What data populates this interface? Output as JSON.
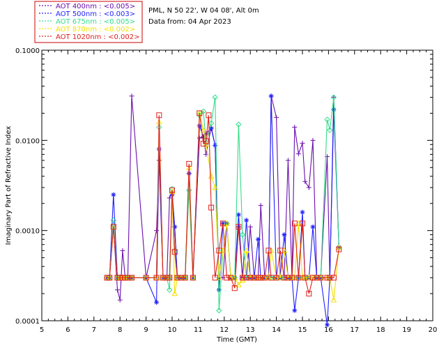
{
  "chart_data": {
    "type": "line",
    "title": "",
    "site": "PML, N 50 22', W 04 08', Alt 0m",
    "date_text": "Data from: 04 Apr 2023",
    "xlabel": "Time (GMT)",
    "ylabel": "Imaginary Part of Refractive Index",
    "xlim": [
      5,
      20
    ],
    "ylim": [
      0.0001,
      0.1
    ],
    "yscale": "log",
    "x_ticks": [
      "5",
      "6",
      "7",
      "8",
      "9",
      "10",
      "11",
      "12",
      "13",
      "14",
      "15",
      "16",
      "17",
      "18",
      "19",
      "20"
    ],
    "y_ticks": [
      "0.0001",
      "0.0010",
      "0.0100",
      "0.1000"
    ],
    "grid": false,
    "legend_position": "top-left, outside plot",
    "series": [
      {
        "name": "AOT  400nm : <0.005>",
        "color": "#6a0dad",
        "marker": "plus",
        "points": [
          [
            7.5,
            0.0003
          ],
          [
            7.6,
            0.0003
          ],
          [
            7.75,
            0.0011
          ],
          [
            7.9,
            0.00022
          ],
          [
            8.0,
            0.00017
          ],
          [
            8.1,
            0.0006
          ],
          [
            8.2,
            0.0003
          ],
          [
            8.3,
            0.0003
          ],
          [
            8.45,
            0.031
          ],
          [
            9.0,
            0.0003
          ],
          [
            9.4,
            0.001
          ],
          [
            9.5,
            0.006
          ],
          [
            9.65,
            0.0003
          ],
          [
            9.8,
            0.0003
          ],
          [
            9.9,
            0.0023
          ],
          [
            10.0,
            0.0027
          ],
          [
            10.1,
            0.0011
          ],
          [
            10.2,
            0.0003
          ],
          [
            10.35,
            0.0003
          ],
          [
            10.5,
            0.0003
          ],
          [
            10.65,
            0.0043
          ],
          [
            10.8,
            0.0003
          ],
          [
            11.05,
            0.0106
          ],
          [
            11.2,
            0.011
          ],
          [
            11.3,
            0.007
          ],
          [
            11.5,
            0.014
          ],
          [
            11.65,
            0.0088
          ],
          [
            11.8,
            0.0003
          ],
          [
            11.95,
            0.0003
          ],
          [
            12.1,
            0.0012
          ],
          [
            12.25,
            0.0003
          ],
          [
            12.4,
            0.0003
          ],
          [
            12.55,
            0.0011
          ],
          [
            12.7,
            0.0003
          ],
          [
            12.85,
            0.0003
          ],
          [
            13.0,
            0.0011
          ],
          [
            13.15,
            0.0003
          ],
          [
            13.3,
            0.0003
          ],
          [
            13.4,
            0.0019
          ],
          [
            13.55,
            0.0003
          ],
          [
            13.7,
            0.0003
          ],
          [
            13.8,
            0.031
          ],
          [
            14.0,
            0.018
          ],
          [
            14.15,
            0.0003
          ],
          [
            14.3,
            0.0003
          ],
          [
            14.45,
            0.006
          ],
          [
            14.6,
            0.0003
          ],
          [
            14.7,
            0.014
          ],
          [
            14.85,
            0.0071
          ],
          [
            15.0,
            0.0093
          ],
          [
            15.1,
            0.0035
          ],
          [
            15.25,
            0.003
          ],
          [
            15.4,
            0.01
          ],
          [
            15.55,
            0.0003
          ],
          [
            15.7,
            0.0003
          ],
          [
            15.95,
            0.0066
          ],
          [
            16.05,
            0.0003
          ],
          [
            16.2,
            0.03
          ],
          [
            16.4,
            0.00065
          ]
        ]
      },
      {
        "name": "AOT  500nm : <0.003>",
        "color": "#1f1fff",
        "marker": "asterisk",
        "points": [
          [
            7.5,
            0.0003
          ],
          [
            7.6,
            0.0003
          ],
          [
            7.75,
            0.0025
          ],
          [
            7.9,
            0.0003
          ],
          [
            8.0,
            0.0003
          ],
          [
            8.1,
            0.0003
          ],
          [
            8.2,
            0.0003
          ],
          [
            8.3,
            0.0003
          ],
          [
            8.45,
            0.0003
          ],
          [
            9.0,
            0.0003
          ],
          [
            9.4,
            0.00016
          ],
          [
            9.5,
            0.008
          ],
          [
            9.65,
            0.0003
          ],
          [
            9.8,
            0.0003
          ],
          [
            9.9,
            0.0003
          ],
          [
            10.0,
            0.0025
          ],
          [
            10.1,
            0.0011
          ],
          [
            10.2,
            0.0003
          ],
          [
            10.35,
            0.0003
          ],
          [
            10.5,
            0.0003
          ],
          [
            10.65,
            0.0043
          ],
          [
            10.8,
            0.0003
          ],
          [
            11.05,
            0.0145
          ],
          [
            11.2,
            0.011
          ],
          [
            11.3,
            0.012
          ],
          [
            11.5,
            0.0135
          ],
          [
            11.65,
            0.0088
          ],
          [
            11.8,
            0.00022
          ],
          [
            11.95,
            0.0012
          ],
          [
            12.1,
            0.0012
          ],
          [
            12.25,
            0.0003
          ],
          [
            12.4,
            0.0003
          ],
          [
            12.55,
            0.0015
          ],
          [
            12.7,
            0.0003
          ],
          [
            12.85,
            0.0013
          ],
          [
            13.0,
            0.0003
          ],
          [
            13.15,
            0.0003
          ],
          [
            13.3,
            0.0008
          ],
          [
            13.4,
            0.0003
          ],
          [
            13.55,
            0.0003
          ],
          [
            13.7,
            0.0003
          ],
          [
            13.8,
            0.031
          ],
          [
            14.0,
            0.0003
          ],
          [
            14.15,
            0.0003
          ],
          [
            14.3,
            0.0009
          ],
          [
            14.45,
            0.0003
          ],
          [
            14.6,
            0.0003
          ],
          [
            14.7,
            0.00013
          ],
          [
            14.85,
            0.0003
          ],
          [
            15.0,
            0.0016
          ],
          [
            15.1,
            0.0003
          ],
          [
            15.25,
            0.0003
          ],
          [
            15.4,
            0.0011
          ],
          [
            15.55,
            0.0003
          ],
          [
            15.7,
            0.0003
          ],
          [
            15.95,
            9e-05
          ],
          [
            16.05,
            0.0003
          ],
          [
            16.2,
            0.022
          ],
          [
            16.4,
            0.00065
          ]
        ]
      },
      {
        "name": "AOT  675nm : <0.005>",
        "color": "#33dd88",
        "marker": "diamond",
        "points": [
          [
            7.5,
            0.0003
          ],
          [
            7.6,
            0.0003
          ],
          [
            7.75,
            0.0013
          ],
          [
            7.9,
            0.0003
          ],
          [
            8.0,
            0.0003
          ],
          [
            8.1,
            0.0003
          ],
          [
            8.2,
            0.0003
          ],
          [
            8.3,
            0.0003
          ],
          [
            8.45,
            0.0003
          ],
          [
            9.0,
            0.0003
          ],
          [
            9.4,
            0.0003
          ],
          [
            9.5,
            0.014
          ],
          [
            9.65,
            0.0003
          ],
          [
            9.8,
            0.0003
          ],
          [
            9.9,
            0.00022
          ],
          [
            10.0,
            0.0029
          ],
          [
            10.1,
            0.0006
          ],
          [
            10.2,
            0.0003
          ],
          [
            10.35,
            0.0003
          ],
          [
            10.5,
            0.0003
          ],
          [
            10.65,
            0.0028
          ],
          [
            10.8,
            0.0003
          ],
          [
            11.05,
            0.019
          ],
          [
            11.2,
            0.021
          ],
          [
            11.3,
            0.0095
          ],
          [
            11.5,
            0.0155
          ],
          [
            11.65,
            0.03
          ],
          [
            11.8,
            0.00013
          ],
          [
            11.95,
            0.0006
          ],
          [
            12.1,
            0.0012
          ],
          [
            12.25,
            0.0003
          ],
          [
            12.4,
            0.0003
          ],
          [
            12.55,
            0.015
          ],
          [
            12.7,
            0.0009
          ],
          [
            12.85,
            0.0003
          ],
          [
            13.0,
            0.0003
          ],
          [
            13.15,
            0.0003
          ],
          [
            13.3,
            0.0003
          ],
          [
            13.4,
            0.0003
          ],
          [
            13.55,
            0.0003
          ],
          [
            13.7,
            0.0003
          ],
          [
            13.8,
            0.0003
          ],
          [
            14.0,
            0.0003
          ],
          [
            14.15,
            0.0003
          ],
          [
            14.3,
            0.0003
          ],
          [
            14.45,
            0.0003
          ],
          [
            14.6,
            0.0003
          ],
          [
            14.7,
            0.0003
          ],
          [
            14.85,
            0.0003
          ],
          [
            15.0,
            0.0003
          ],
          [
            15.1,
            0.0003
          ],
          [
            15.25,
            0.0003
          ],
          [
            15.4,
            0.0003
          ],
          [
            15.55,
            0.0003
          ],
          [
            15.7,
            0.0003
          ],
          [
            15.95,
            0.017
          ],
          [
            16.05,
            0.013
          ],
          [
            16.2,
            0.03
          ],
          [
            16.4,
            0.00065
          ]
        ]
      },
      {
        "name": "AOT  870nm : <0.002>",
        "color": "#f5e000",
        "marker": "triangle",
        "points": [
          [
            7.5,
            0.0003
          ],
          [
            7.6,
            0.0003
          ],
          [
            7.75,
            0.0011
          ],
          [
            7.9,
            0.0003
          ],
          [
            8.0,
            0.0003
          ],
          [
            8.1,
            0.0003
          ],
          [
            8.2,
            0.0003
          ],
          [
            8.3,
            0.0003
          ],
          [
            8.45,
            0.0003
          ],
          [
            9.0,
            0.0003
          ],
          [
            9.4,
            0.0003
          ],
          [
            9.5,
            0.016
          ],
          [
            9.65,
            0.0003
          ],
          [
            9.8,
            0.0003
          ],
          [
            9.9,
            0.0003
          ],
          [
            10.0,
            0.0027
          ],
          [
            10.1,
            0.0002
          ],
          [
            10.2,
            0.0003
          ],
          [
            10.35,
            0.0003
          ],
          [
            10.5,
            0.0003
          ],
          [
            10.65,
            0.005
          ],
          [
            10.8,
            0.0003
          ],
          [
            11.05,
            0.02
          ],
          [
            11.2,
            0.013
          ],
          [
            11.3,
            0.009
          ],
          [
            11.5,
            0.004
          ],
          [
            11.65,
            0.003
          ],
          [
            11.8,
            0.0003
          ],
          [
            11.95,
            0.0006
          ],
          [
            12.1,
            0.0012
          ],
          [
            12.25,
            0.0003
          ],
          [
            12.4,
            0.0003
          ],
          [
            12.55,
            0.00025
          ],
          [
            12.7,
            0.00028
          ],
          [
            12.85,
            0.0006
          ],
          [
            13.0,
            0.0003
          ],
          [
            13.15,
            0.0003
          ],
          [
            13.3,
            0.0003
          ],
          [
            13.4,
            0.0003
          ],
          [
            13.55,
            0.0003
          ],
          [
            13.7,
            0.0003
          ],
          [
            13.8,
            0.0006
          ],
          [
            14.0,
            0.0003
          ],
          [
            14.15,
            0.0003
          ],
          [
            14.3,
            0.0006
          ],
          [
            14.45,
            0.0003
          ],
          [
            14.6,
            0.0003
          ],
          [
            14.7,
            0.0003
          ],
          [
            14.85,
            0.0012
          ],
          [
            15.0,
            0.0003
          ],
          [
            15.1,
            0.0003
          ],
          [
            15.25,
            0.0003
          ],
          [
            15.4,
            0.0003
          ],
          [
            15.55,
            0.0003
          ],
          [
            15.7,
            0.0003
          ],
          [
            15.95,
            0.0003
          ],
          [
            16.05,
            0.0003
          ],
          [
            16.2,
            0.00017
          ],
          [
            16.4,
            0.00065
          ]
        ]
      },
      {
        "name": "AOT 1020nm : <0.002>",
        "color": "#e0201e",
        "marker": "square",
        "points": [
          [
            7.5,
            0.0003
          ],
          [
            7.6,
            0.0003
          ],
          [
            7.75,
            0.0011
          ],
          [
            7.9,
            0.0003
          ],
          [
            8.0,
            0.0003
          ],
          [
            8.1,
            0.0003
          ],
          [
            8.2,
            0.0003
          ],
          [
            8.3,
            0.0003
          ],
          [
            8.45,
            0.0003
          ],
          [
            9.0,
            0.0003
          ],
          [
            9.4,
            0.0003
          ],
          [
            9.5,
            0.019
          ],
          [
            9.65,
            0.0003
          ],
          [
            9.8,
            0.0003
          ],
          [
            9.9,
            0.0003
          ],
          [
            10.0,
            0.0028
          ],
          [
            10.1,
            0.00058
          ],
          [
            10.2,
            0.0003
          ],
          [
            10.35,
            0.0003
          ],
          [
            10.5,
            0.0003
          ],
          [
            10.65,
            0.0055
          ],
          [
            10.8,
            0.0003
          ],
          [
            11.05,
            0.02
          ],
          [
            11.2,
            0.0092
          ],
          [
            11.3,
            0.0098
          ],
          [
            11.4,
            0.019
          ],
          [
            11.5,
            0.0018
          ],
          [
            11.65,
            0.0003
          ],
          [
            11.8,
            0.0006
          ],
          [
            11.95,
            0.0012
          ],
          [
            12.1,
            0.0003
          ],
          [
            12.25,
            0.0003
          ],
          [
            12.4,
            0.00023
          ],
          [
            12.55,
            0.0011
          ],
          [
            12.7,
            0.0003
          ],
          [
            12.85,
            0.0003
          ],
          [
            13.0,
            0.0003
          ],
          [
            13.15,
            0.0003
          ],
          [
            13.3,
            0.0003
          ],
          [
            13.4,
            0.0003
          ],
          [
            13.55,
            0.0003
          ],
          [
            13.7,
            0.0006
          ],
          [
            13.8,
            0.0003
          ],
          [
            14.0,
            0.0003
          ],
          [
            14.15,
            0.0006
          ],
          [
            14.3,
            0.0003
          ],
          [
            14.45,
            0.0003
          ],
          [
            14.6,
            0.0003
          ],
          [
            14.7,
            0.0012
          ],
          [
            14.85,
            0.0003
          ],
          [
            15.0,
            0.0012
          ],
          [
            15.1,
            0.0003
          ],
          [
            15.25,
            0.0002
          ],
          [
            15.4,
            0.0003
          ],
          [
            15.55,
            0.0003
          ],
          [
            15.7,
            0.0003
          ],
          [
            15.95,
            0.0003
          ],
          [
            16.05,
            0.0003
          ],
          [
            16.2,
            0.0003
          ],
          [
            16.4,
            0.00062
          ]
        ]
      }
    ]
  }
}
